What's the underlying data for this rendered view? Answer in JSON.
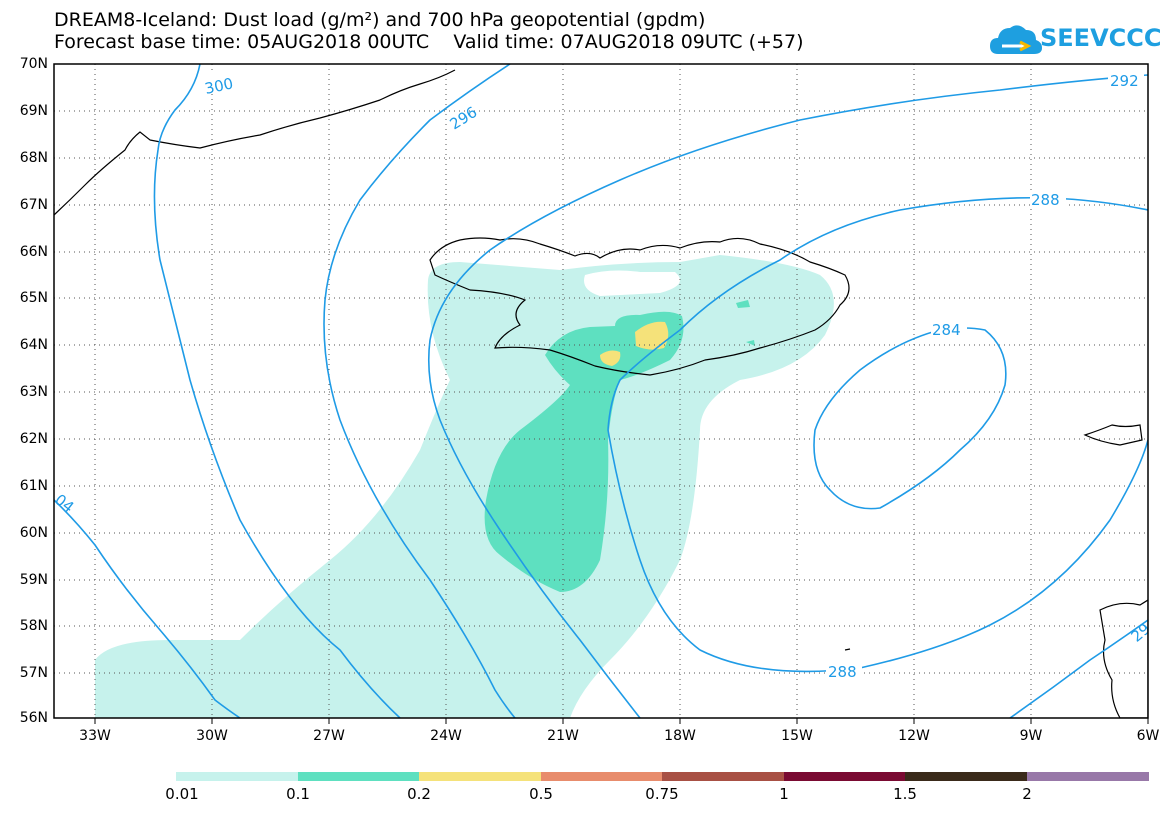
{
  "header": {
    "title_line1": "DREAM8-Iceland: Dust load (g/m²) and 700 hPa geopotential (gpdm)",
    "title_line2": "Forecast base time: 05AUG2018 00UTC    Valid time: 07AUG2018 09UTC (+57)"
  },
  "logo": {
    "text": "SEEVCCC",
    "icon": "cloud-icon",
    "color": "#1e9fe0"
  },
  "map": {
    "lat_labels": [
      "70N",
      "69N",
      "68N",
      "67N",
      "66N",
      "65N",
      "64N",
      "63N",
      "62N",
      "61N",
      "60N",
      "59N",
      "58N",
      "57N",
      "56N"
    ],
    "lon_labels": [
      "33W",
      "30W",
      "27W",
      "24W",
      "21W",
      "18W",
      "15W",
      "12W",
      "9W",
      "6W"
    ],
    "contour_labels": [
      "300",
      "296",
      "292",
      "288",
      "284",
      "288",
      "04",
      "29"
    ],
    "contour_color": "#1f9be6",
    "coast_color": "#000000"
  },
  "colorbar": {
    "labels": [
      "0.01",
      "0.1",
      "0.2",
      "0.5",
      "0.75",
      "1",
      "1.5",
      "2"
    ],
    "colors": [
      "#c6f2ec",
      "#5ee0c0",
      "#f5e27a",
      "#e88c6c",
      "#a85044",
      "#7a0a32",
      "#3a2a1a",
      "#9878a8"
    ]
  }
}
